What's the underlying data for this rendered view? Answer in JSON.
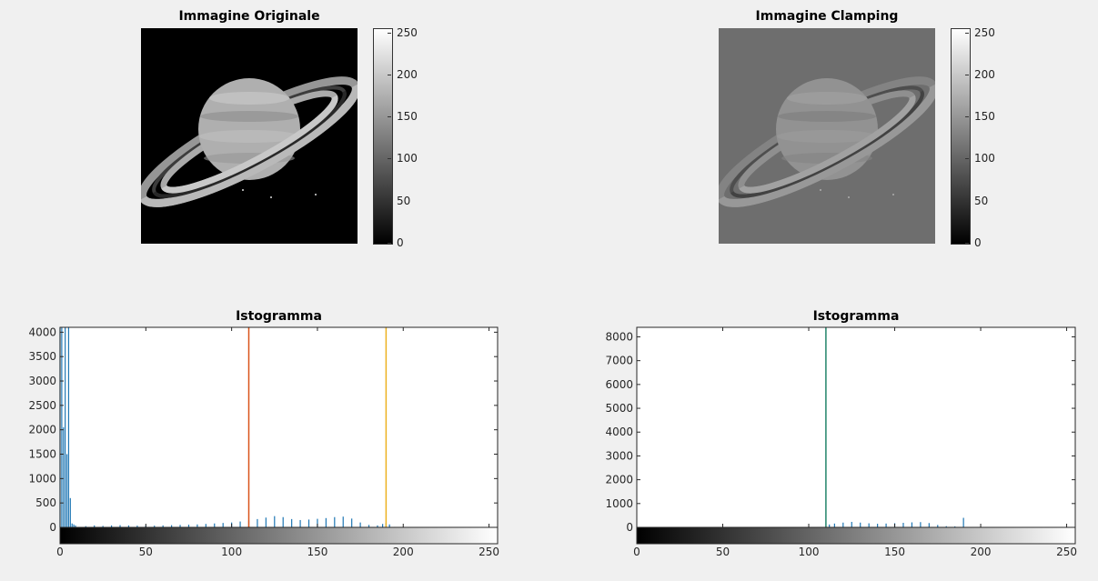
{
  "images": {
    "original": {
      "title": "Immagine Originale",
      "background": "#000000",
      "subject": "saturn"
    },
    "clamping": {
      "title": "Immagine Clamping",
      "background": "#6e6e6e",
      "subject": "saturn"
    }
  },
  "colorbar": {
    "ticks": [
      "250",
      "200",
      "150",
      "100",
      "50",
      "0"
    ],
    "range": [
      0,
      255
    ]
  },
  "colors": {
    "bars": "#1f77b4",
    "line_orange": "#d95319",
    "line_yellow": "#edb120",
    "line_green": "#2e8b6e"
  },
  "chart_data": [
    {
      "type": "bar",
      "title": "Istogramma",
      "xlabel": "",
      "ylabel": "",
      "xlim": [
        0,
        255
      ],
      "ylim": [
        0,
        4100
      ],
      "xticks": [
        0,
        50,
        100,
        150,
        200,
        250
      ],
      "yticks": [
        0,
        500,
        1000,
        1500,
        2000,
        2500,
        3000,
        3500,
        4000
      ],
      "grayscale_strip": true,
      "vertical_lines": [
        {
          "x": 110,
          "color": "#d95319"
        },
        {
          "x": 190,
          "color": "#edb120"
        }
      ],
      "series": [
        {
          "values": [
            [
              0,
              4100
            ],
            [
              1,
              4100
            ],
            [
              2,
              2050
            ],
            [
              3,
              4100
            ],
            [
              4,
              1500
            ],
            [
              5,
              4100
            ],
            [
              6,
              600
            ],
            [
              7,
              80
            ],
            [
              8,
              60
            ],
            [
              9,
              40
            ],
            [
              15,
              25
            ],
            [
              20,
              40
            ],
            [
              25,
              30
            ],
            [
              30,
              40
            ],
            [
              35,
              45
            ],
            [
              40,
              40
            ],
            [
              45,
              35
            ],
            [
              50,
              40
            ],
            [
              55,
              35
            ],
            [
              60,
              40
            ],
            [
              65,
              45
            ],
            [
              70,
              50
            ],
            [
              75,
              55
            ],
            [
              80,
              60
            ],
            [
              85,
              70
            ],
            [
              90,
              80
            ],
            [
              95,
              90
            ],
            [
              100,
              100
            ],
            [
              105,
              120
            ],
            [
              110,
              140
            ],
            [
              115,
              170
            ],
            [
              120,
              200
            ],
            [
              125,
              230
            ],
            [
              130,
              210
            ],
            [
              135,
              170
            ],
            [
              140,
              150
            ],
            [
              145,
              160
            ],
            [
              150,
              175
            ],
            [
              155,
              190
            ],
            [
              160,
              210
            ],
            [
              165,
              220
            ],
            [
              170,
              180
            ],
            [
              175,
              100
            ],
            [
              180,
              50
            ],
            [
              185,
              40
            ],
            [
              188,
              70
            ],
            [
              190,
              90
            ],
            [
              192,
              60
            ],
            [
              195,
              10
            ],
            [
              200,
              5
            ]
          ]
        }
      ]
    },
    {
      "type": "bar",
      "title": "Istogramma",
      "xlabel": "",
      "ylabel": "",
      "xlim": [
        0,
        255
      ],
      "ylim": [
        0,
        8400
      ],
      "xticks": [
        0,
        50,
        100,
        150,
        200,
        250
      ],
      "yticks": [
        0,
        1000,
        2000,
        3000,
        4000,
        5000,
        6000,
        7000,
        8000
      ],
      "grayscale_strip": true,
      "vertical_lines": [
        {
          "x": 110,
          "color": "#2e8b6e"
        }
      ],
      "series": [
        {
          "values": [
            [
              110,
              8400
            ],
            [
              112,
              120
            ],
            [
              115,
              160
            ],
            [
              120,
              200
            ],
            [
              125,
              230
            ],
            [
              130,
              200
            ],
            [
              135,
              170
            ],
            [
              140,
              150
            ],
            [
              145,
              160
            ],
            [
              150,
              175
            ],
            [
              155,
              190
            ],
            [
              160,
              210
            ],
            [
              165,
              220
            ],
            [
              170,
              180
            ],
            [
              175,
              100
            ],
            [
              180,
              50
            ],
            [
              185,
              40
            ],
            [
              190,
              400
            ]
          ]
        }
      ]
    }
  ]
}
